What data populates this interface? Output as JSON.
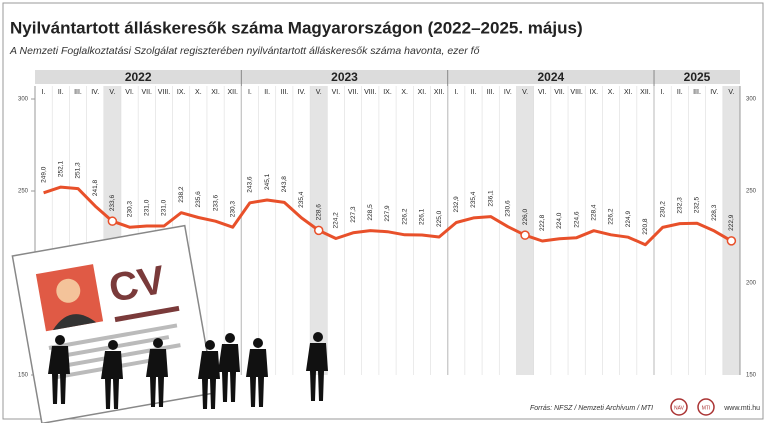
{
  "chart_data": {
    "type": "line",
    "title": "Nyilvántartott álláskeresők száma Magyarországon (2022–2025. május)",
    "subtitle": "A Nemzeti Foglalkoztatási Szolgálat regiszterében nyilvántartott álláskeresők száma havonta, ezer fő",
    "year_labels": [
      "2022",
      "2023",
      "2024",
      "2025"
    ],
    "categories": [
      "I.",
      "II.",
      "III.",
      "IV.",
      "V.",
      "VI.",
      "VII.",
      "VIII.",
      "IX.",
      "X.",
      "XI.",
      "XII.",
      "I.",
      "II.",
      "III.",
      "IV.",
      "V.",
      "VI.",
      "VII.",
      "VIII.",
      "IX.",
      "X.",
      "XI.",
      "XII.",
      "I.",
      "II.",
      "III.",
      "IV.",
      "V.",
      "VI.",
      "VII.",
      "VIII.",
      "IX.",
      "X.",
      "XI.",
      "XII.",
      "I.",
      "II.",
      "III.",
      "IV.",
      "V."
    ],
    "series": [
      {
        "name": "Álláskeresők",
        "color": "#e8502a",
        "values": [
          249.0,
          252.1,
          251.3,
          241.8,
          233.6,
          230.3,
          231.0,
          231.0,
          238.2,
          235.6,
          233.6,
          230.3,
          243.6,
          245.1,
          243.8,
          235.4,
          228.6,
          224.2,
          227.3,
          228.5,
          227.9,
          226.2,
          226.1,
          225.0,
          232.9,
          235.4,
          236.1,
          230.6,
          226.0,
          222.8,
          224.0,
          224.6,
          228.4,
          226.2,
          224.9,
          220.8,
          230.2,
          232.3,
          232.5,
          228.3,
          222.9
        ],
        "value_labels": [
          "249,0",
          "252,1",
          "251,3",
          "241,8",
          "233,6",
          "230,3",
          "231,0",
          "231,0",
          "238,2",
          "235,6",
          "233,6",
          "230,3",
          "243,6",
          "245,1",
          "243,8",
          "235,4",
          "228,6",
          "224,2",
          "227,3",
          "228,5",
          "227,9",
          "226,2",
          "226,1",
          "225,0",
          "232,9",
          "235,4",
          "236,1",
          "230,6",
          "226,0",
          "222,8",
          "224,0",
          "224,6",
          "228,4",
          "226,2",
          "224,9",
          "220,8",
          "230,2",
          "232,3",
          "232,5",
          "228,3",
          "222,9"
        ]
      }
    ],
    "highlight_category": "V.",
    "ylim": [
      150,
      300
    ],
    "yticks": [
      150,
      200,
      250,
      300
    ],
    "grid": true,
    "illustration_text": "CV",
    "source": "Forrás: NFSZ / Nemzeti Archívum / MTI",
    "logos": [
      "NAV",
      "MTI"
    ],
    "url": "www.mti.hu"
  }
}
